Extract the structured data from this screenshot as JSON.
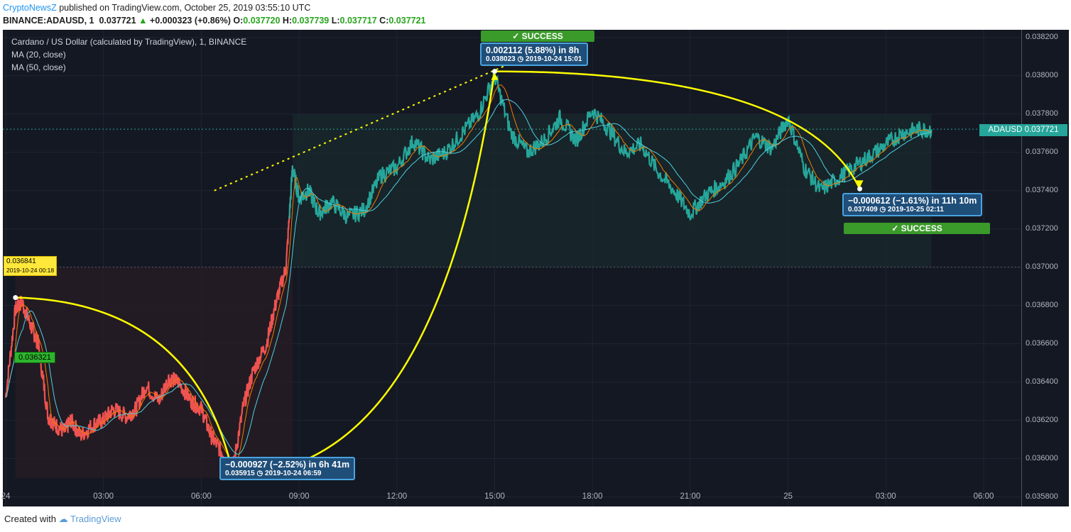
{
  "header": {
    "brand": "CryptoNewsZ",
    "published": " published on TradingView.com, October 25, 2019 03:55:10 UTC",
    "symbol": "BINANCE:ADAUSD, 1",
    "last": "0.037721",
    "change": "+0.000323 (+0.86%)",
    "o_label": "O:",
    "o": "0.037720",
    "h_label": "H:",
    "h": "0.037739",
    "l_label": "L:",
    "l": "0.037717",
    "c_label": "C:",
    "c": "0.037721"
  },
  "legend": {
    "title": "Cardano / US Dollar (calculated by TradingView), 1, BINANCE",
    "ma20": "MA (20, close)",
    "ma50": "MA (50, close)"
  },
  "annotations": {
    "top_callout_main": "0.002112 (5.88%) in 8h",
    "top_callout_sub": "0.038023 ◷ 2019-10-24  15:01",
    "top_success": "✓ SUCCESS",
    "low_callout_main": "−0.000927 (−2.52%) in 6h 41m",
    "low_callout_sub": "0.035915 ◷ 2019-10-24  06:59",
    "right_callout_main": "−0.000612 (−1.61%) in 11h 10m",
    "right_callout_sub": "0.037409 ◷ 2019-10-25  02:11",
    "right_success": "✓ SUCCESS",
    "yellow_tag_price": "0.036841",
    "yellow_tag_time": "2019-10-24 00:18",
    "green_tag": "0.036321",
    "price_tag": "ADAUSD  0.037721"
  },
  "footer": {
    "created": "Created with",
    "tradingview": "TradingView"
  },
  "colors": {
    "up": "#26a69a",
    "down": "#ef5350",
    "yellow": "#ffff00",
    "ma20": "#f57c00",
    "ma50": "#4dd0e1",
    "background": "#141823"
  },
  "chart_data": {
    "type": "line",
    "title": "Cardano / US Dollar (calculated by TradingView), 1, BINANCE",
    "y_ticks": [
      "0.038200",
      "0.038000",
      "0.037800",
      "0.037600",
      "0.037400",
      "0.037200",
      "0.037000",
      "0.036800",
      "0.036600",
      "0.036400",
      "0.036200",
      "0.036000",
      "0.035800"
    ],
    "x_ticks": [
      "24",
      "03:00",
      "06:00",
      "09:00",
      "12:00",
      "15:00",
      "18:00",
      "21:00",
      "25",
      "03:00",
      "06:00"
    ],
    "ylim": [
      0.03575,
      0.03824
    ],
    "x_hours_range": [
      0,
      29.5
    ],
    "series": [
      {
        "x": [
          0,
          0.3,
          0.5,
          0.8,
          1.0,
          1.3,
          1.5,
          1.8,
          2.0,
          2.3,
          2.7,
          3.0,
          3.3,
          3.7,
          4.0,
          4.3,
          4.7,
          5.0,
          5.3,
          5.7,
          6.0,
          6.3,
          6.6,
          6.98,
          7.3,
          7.6,
          8.0,
          8.3,
          8.6,
          8.8,
          9.0,
          9.3,
          9.6,
          10.0,
          10.5,
          11.0,
          11.5,
          12.0,
          12.5,
          13.0,
          13.5,
          14.0,
          14.5,
          15.0,
          15.5,
          16.0,
          16.5,
          17.0,
          17.5,
          18.0,
          18.5,
          19.0,
          19.5,
          20.0,
          20.5,
          21.0,
          21.5,
          22.0,
          22.5,
          23.0,
          23.5,
          24.0,
          24.5,
          25.0,
          25.5,
          26.0,
          26.5,
          27.0,
          27.5,
          28.0,
          28.4
        ],
        "y": [
          0.03632,
          0.03678,
          0.03682,
          0.03668,
          0.0366,
          0.03622,
          0.03618,
          0.03614,
          0.0362,
          0.03612,
          0.03618,
          0.0362,
          0.03626,
          0.03622,
          0.03626,
          0.03638,
          0.0363,
          0.03642,
          0.0364,
          0.0363,
          0.03626,
          0.03612,
          0.03604,
          0.03596,
          0.03628,
          0.03646,
          0.0366,
          0.03682,
          0.037,
          0.03752,
          0.03736,
          0.0374,
          0.03728,
          0.03734,
          0.03726,
          0.0373,
          0.03748,
          0.03752,
          0.03766,
          0.03756,
          0.0376,
          0.0377,
          0.0378,
          0.038,
          0.0377,
          0.0376,
          0.03766,
          0.03778,
          0.03766,
          0.03782,
          0.03772,
          0.0376,
          0.03764,
          0.0375,
          0.0374,
          0.03728,
          0.03738,
          0.03744,
          0.03754,
          0.03768,
          0.03762,
          0.03778,
          0.03752,
          0.0374,
          0.03746,
          0.03752,
          0.03758,
          0.03764,
          0.0377,
          0.03772,
          0.03772
        ]
      }
    ]
  }
}
